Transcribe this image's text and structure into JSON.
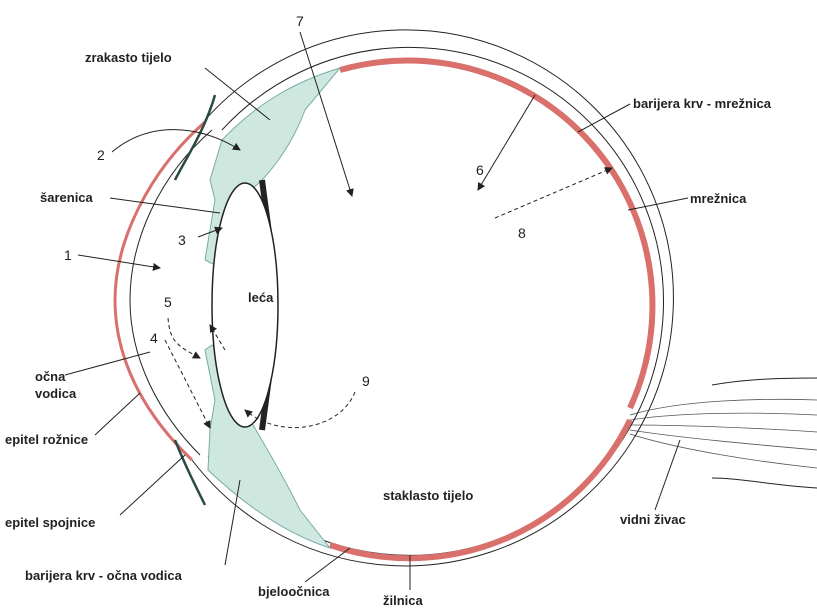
{
  "labels": {
    "n7": "7",
    "zrakasto": "zrakasto tijelo",
    "n2": "2",
    "sarenica": "šarenica",
    "n3": "3",
    "n1": "1",
    "leca": "leća",
    "n5": "5",
    "n4": "4",
    "ocna_vodica": [
      "očna",
      "vodica"
    ],
    "epitel_roznice": "epitel rožnice",
    "epitel_spojnice": "epitel spojnice",
    "barijera_ocna": "barijera krv - očna vodica",
    "bjeloocnica": "bjeloočnica",
    "zilnica": "žilnica",
    "staklasto": "staklasto tijelo",
    "vidni": "vidni živac",
    "mreznica": "mrežnica",
    "barijera_mreznica": "barijera krv - mrežnica",
    "n6": "6",
    "n8": "8",
    "n9": "9"
  }
}
